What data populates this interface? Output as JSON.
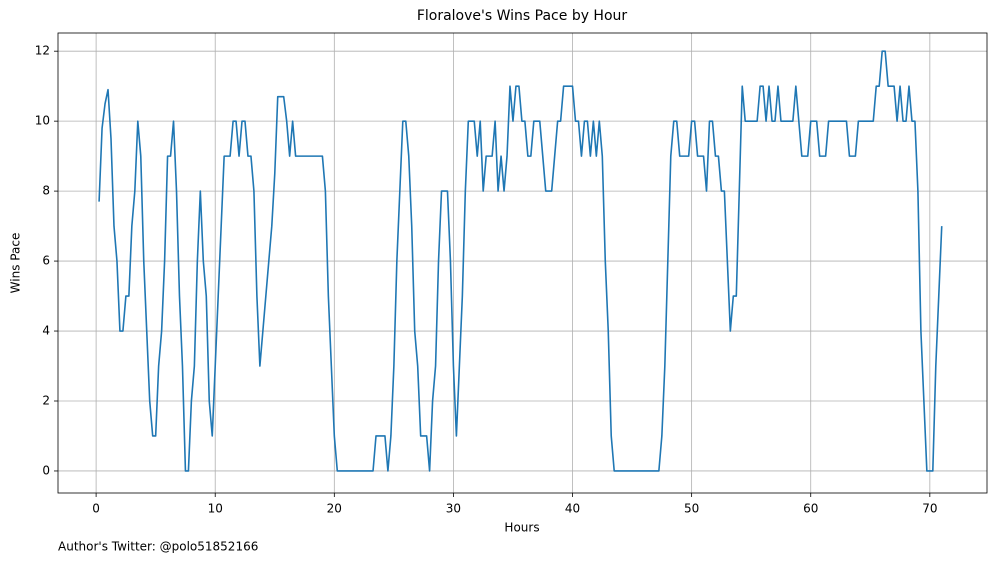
{
  "chart_data": {
    "type": "line",
    "title": "Floralove's Wins Pace by Hour",
    "x_label": "Hours",
    "y_label": "Wins Pace",
    "annotation": "Author's Twitter: @polo51852166",
    "xlim": [
      -3.2,
      74.8
    ],
    "ylim": [
      -0.63,
      12.52
    ],
    "xticks": [
      0,
      10,
      20,
      30,
      40,
      50,
      60,
      70
    ],
    "yticks": [
      0,
      2,
      4,
      6,
      8,
      10,
      12
    ],
    "grid": true,
    "x": [
      0.25,
      0.5,
      0.75,
      1,
      1.25,
      1.5,
      1.75,
      2,
      2.25,
      2.5,
      2.75,
      3,
      3.25,
      3.5,
      3.75,
      4,
      4.25,
      4.5,
      4.75,
      5,
      5.25,
      5.5,
      5.75,
      6,
      6.25,
      6.5,
      6.75,
      7,
      7.25,
      7.5,
      7.75,
      8,
      8.25,
      8.5,
      8.75,
      9,
      9.25,
      9.5,
      9.75,
      10,
      10.25,
      10.5,
      10.75,
      11,
      11.25,
      11.5,
      11.75,
      12,
      12.25,
      12.5,
      12.75,
      13,
      13.25,
      13.5,
      13.75,
      14,
      14.25,
      14.5,
      14.75,
      15,
      15.25,
      15.5,
      15.75,
      16,
      16.25,
      16.5,
      16.75,
      17,
      17.25,
      17.5,
      17.75,
      18,
      18.25,
      18.5,
      18.75,
      19,
      19.25,
      19.5,
      19.75,
      20,
      20.25,
      20.5,
      20.75,
      21,
      21.25,
      21.5,
      21.75,
      22,
      22.25,
      22.5,
      22.75,
      23,
      23.25,
      23.5,
      23.75,
      24,
      24.25,
      24.5,
      24.75,
      25,
      25.25,
      25.5,
      25.75,
      26,
      26.25,
      26.5,
      26.75,
      27,
      27.25,
      27.5,
      27.75,
      28,
      28.25,
      28.5,
      28.75,
      29,
      29.25,
      29.5,
      29.75,
      30,
      30.25,
      30.5,
      30.75,
      31,
      31.25,
      31.5,
      31.75,
      32,
      32.25,
      32.5,
      32.75,
      33,
      33.25,
      33.5,
      33.75,
      34,
      34.25,
      34.5,
      34.75,
      35,
      35.25,
      35.5,
      35.75,
      36,
      36.25,
      36.5,
      36.75,
      37,
      37.25,
      37.5,
      37.75,
      38,
      38.25,
      38.5,
      38.75,
      39,
      39.25,
      39.5,
      39.75,
      40,
      40.25,
      40.5,
      40.75,
      41,
      41.25,
      41.5,
      41.75,
      42,
      42.25,
      42.5,
      42.75,
      43,
      43.25,
      43.5,
      43.75,
      44,
      44.25,
      44.5,
      44.75,
      45,
      45.25,
      45.5,
      45.75,
      46,
      46.25,
      46.5,
      46.75,
      47,
      47.25,
      47.5,
      47.75,
      48,
      48.25,
      48.5,
      48.75,
      49,
      49.25,
      49.5,
      49.75,
      50,
      50.25,
      50.5,
      50.75,
      51,
      51.25,
      51.5,
      51.75,
      52,
      52.25,
      52.5,
      52.75,
      53,
      53.25,
      53.5,
      53.75,
      54,
      54.25,
      54.5,
      54.75,
      55,
      55.25,
      55.5,
      55.75,
      56,
      56.25,
      56.5,
      56.75,
      57,
      57.25,
      57.5,
      57.75,
      58,
      58.25,
      58.5,
      58.75,
      59,
      59.25,
      59.5,
      59.75,
      60,
      60.25,
      60.5,
      60.75,
      61,
      61.25,
      61.5,
      61.75,
      62,
      62.25,
      62.5,
      62.75,
      63,
      63.25,
      63.5,
      63.75,
      64,
      64.25,
      64.5,
      64.75,
      65,
      65.25,
      65.5,
      65.75,
      66,
      66.25,
      66.5,
      66.75,
      67,
      67.25,
      67.5,
      67.75,
      68,
      68.25,
      68.5,
      68.75,
      69,
      69.25,
      69.5,
      69.75,
      70,
      70.25,
      70.5,
      70.75,
      71
    ],
    "series": [
      {
        "color": "#1f77b4",
        "values": [
          7.7,
          9.8,
          10.5,
          10.9,
          9.5,
          7,
          6,
          4,
          4,
          5,
          5,
          7,
          8,
          10,
          9,
          6,
          4,
          2,
          1,
          1,
          3,
          4,
          6,
          9,
          9,
          10,
          8,
          5,
          3,
          0,
          0,
          2,
          3,
          6,
          8,
          6,
          5,
          2,
          1,
          3,
          5,
          7,
          9,
          9,
          9,
          10,
          10,
          9,
          10,
          10,
          9,
          9,
          8,
          5,
          3,
          4,
          5,
          6,
          7,
          8.5,
          10.7,
          10.7,
          10.7,
          10,
          9,
          10,
          9,
          9,
          9,
          9,
          9,
          9,
          9,
          9,
          9,
          9,
          8,
          5,
          3,
          1,
          0,
          0,
          0,
          0,
          0,
          0,
          0,
          0,
          0,
          0,
          0,
          0,
          0,
          1,
          1,
          1,
          1,
          0,
          1,
          3,
          6,
          8,
          10,
          10,
          9,
          7,
          4,
          3,
          1,
          1,
          1,
          0,
          2,
          3,
          6,
          8,
          8,
          8,
          6,
          3,
          1,
          3,
          5,
          8,
          10,
          10,
          10,
          9,
          10,
          8,
          9,
          9,
          9,
          10,
          8,
          9,
          8,
          9,
          11,
          10,
          11,
          11,
          10,
          10,
          9,
          9,
          10,
          10,
          10,
          9,
          8,
          8,
          8,
          9,
          10,
          10,
          11,
          11,
          11,
          11,
          10,
          10,
          9,
          10,
          10,
          9,
          10,
          9,
          10,
          9,
          6,
          4,
          1,
          0,
          0,
          0,
          0,
          0,
          0,
          0,
          0,
          0,
          0,
          0,
          0,
          0,
          0,
          0,
          0,
          1,
          3,
          6,
          9,
          10,
          10,
          9,
          9,
          9,
          9,
          10,
          10,
          9,
          9,
          9,
          8,
          10,
          10,
          9,
          9,
          8,
          8,
          6,
          4,
          5,
          5,
          8,
          11,
          10,
          10,
          10,
          10,
          10,
          11,
          11,
          10,
          11,
          10,
          10,
          11,
          10,
          10,
          10,
          10,
          10,
          11,
          10,
          9,
          9,
          9,
          10,
          10,
          10,
          9,
          9,
          9,
          10,
          10,
          10,
          10,
          10,
          10,
          10,
          9,
          9,
          9,
          10,
          10,
          10,
          10,
          10,
          10,
          11,
          11,
          12,
          12,
          11,
          11,
          11,
          10,
          11,
          10,
          10,
          11,
          10,
          10,
          8,
          4,
          2,
          0,
          0,
          0,
          3,
          5,
          7
        ]
      }
    ]
  }
}
